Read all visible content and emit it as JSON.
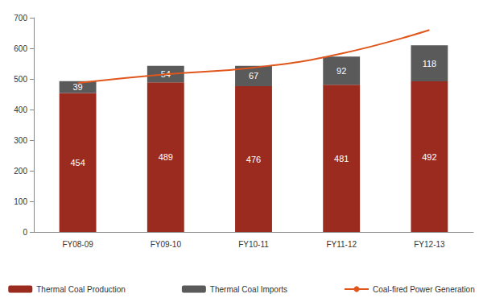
{
  "chart_data": {
    "type": "bar",
    "stacked": true,
    "grid": false,
    "legend": "bottom",
    "categories": [
      "FY08-09",
      "FY09-10",
      "FY10-11",
      "FY11-12",
      "FY12-13"
    ],
    "ylim": [
      0,
      700
    ],
    "yticks": [
      0,
      100,
      200,
      300,
      400,
      500,
      600,
      700
    ],
    "series": [
      {
        "name": "Thermal Coal Production",
        "type": "bar",
        "color": "#9b2b1f",
        "data_labels": true,
        "values": [
          454,
          489,
          476,
          481,
          492
        ]
      },
      {
        "name": "Thermal Coal Imports",
        "type": "bar",
        "color": "#5a5a5a",
        "data_labels": true,
        "values": [
          39,
          54,
          67,
          92,
          118
        ]
      },
      {
        "name": "Coal-fired Power Generation",
        "type": "line",
        "color": "#e0561c",
        "data_labels": false,
        "marker": "none",
        "line_style": "solid",
        "values": [
          487,
          515,
          537,
          583,
          660
        ]
      }
    ]
  }
}
